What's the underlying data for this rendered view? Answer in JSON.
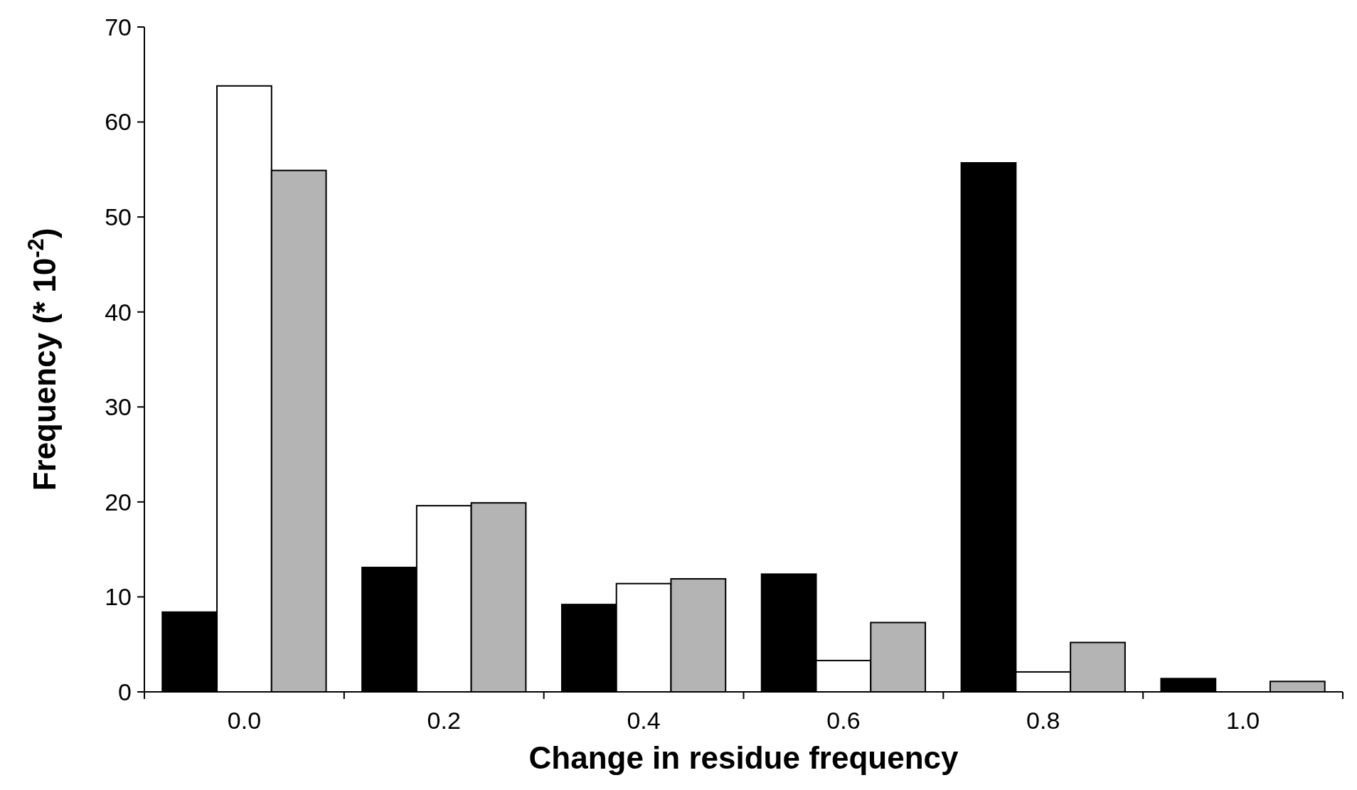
{
  "chart_data": {
    "type": "bar",
    "xlabel": "Change in residue frequency",
    "ylabel": "Frequency (* 10$^{-2}$)",
    "categories": [
      "0.0",
      "0.2",
      "0.4",
      "0.6",
      "0.8",
      "1.0"
    ],
    "series": [
      {
        "color": "#000000",
        "values": [
          8.4,
          13.1,
          9.2,
          12.4,
          55.7,
          1.4
        ]
      },
      {
        "color": "#ffffff",
        "values": [
          63.8,
          19.6,
          11.4,
          3.3,
          2.1,
          0
        ]
      },
      {
        "color": "#b4b4b4",
        "values": [
          54.9,
          19.9,
          11.9,
          7.3,
          5.2,
          1.1
        ]
      }
    ],
    "ylim": [
      0,
      70
    ],
    "yticks": [
      0,
      10,
      20,
      30,
      40,
      50,
      60,
      70
    ]
  }
}
